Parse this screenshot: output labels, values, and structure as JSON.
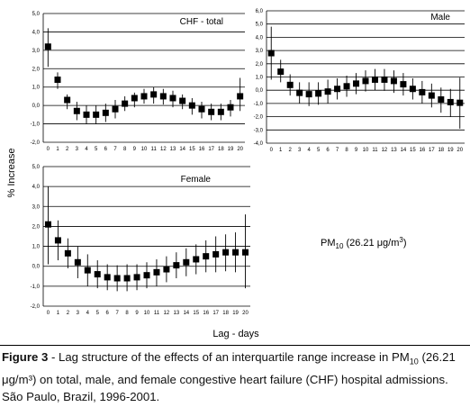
{
  "chart_data": {
    "type": "scatter",
    "ylabel": "% Increase",
    "xlabel": "Lag - days",
    "pollutant_label": {
      "main": "PM",
      "sub": "10",
      "rest": " (26.21 μg/m",
      "sup": "3",
      "close": ")"
    },
    "panels": [
      {
        "title": "CHF - total",
        "x": [
          0,
          1,
          2,
          3,
          4,
          5,
          6,
          7,
          8,
          9,
          10,
          11,
          12,
          13,
          14,
          15,
          16,
          17,
          18,
          19,
          20
        ],
        "y": [
          3.2,
          1.4,
          0.3,
          -0.3,
          -0.5,
          -0.5,
          -0.4,
          -0.2,
          0.1,
          0.4,
          0.5,
          0.6,
          0.5,
          0.4,
          0.25,
          0.0,
          -0.2,
          -0.35,
          -0.35,
          -0.1,
          0.5
        ],
        "ci_low": [
          2.1,
          0.9,
          -0.2,
          -0.8,
          -1.0,
          -1.0,
          -0.9,
          -0.7,
          -0.3,
          -0.1,
          0.1,
          0.1,
          0.05,
          -0.1,
          -0.2,
          -0.5,
          -0.7,
          -0.8,
          -0.8,
          -0.6,
          -0.3
        ],
        "ci_high": [
          4.2,
          1.8,
          0.6,
          0.2,
          0.0,
          0.0,
          0.1,
          0.3,
          0.5,
          0.7,
          0.9,
          1.0,
          0.9,
          0.8,
          0.6,
          0.4,
          0.2,
          0.1,
          0.1,
          0.3,
          1.5
        ],
        "ylim": [
          -2,
          5
        ],
        "yticks": [
          "-2,0",
          "-1,0",
          "0,0",
          "1,0",
          "2,0",
          "3,0",
          "4,0",
          "5,0"
        ],
        "yticks_values": [
          -2,
          -1,
          0,
          1,
          2,
          3,
          4,
          5
        ],
        "xticks": [
          "0",
          "1",
          "2",
          "3",
          "4",
          "5",
          "6",
          "7",
          "8",
          "9",
          "10",
          "11",
          "12",
          "13",
          "14",
          "15",
          "16",
          "17",
          "18",
          "19",
          "20"
        ]
      },
      {
        "title": "Male",
        "x": [
          0,
          1,
          2,
          3,
          4,
          5,
          6,
          7,
          8,
          9,
          10,
          11,
          12,
          13,
          14,
          15,
          16,
          17,
          18,
          19,
          20
        ],
        "y": [
          2.8,
          1.4,
          0.4,
          -0.2,
          -0.3,
          -0.25,
          -0.1,
          0.1,
          0.3,
          0.5,
          0.7,
          0.8,
          0.8,
          0.7,
          0.45,
          0.1,
          -0.15,
          -0.4,
          -0.7,
          -0.9,
          -0.95
        ],
        "ci_low": [
          0.8,
          0.6,
          -0.4,
          -1.0,
          -1.2,
          -1.1,
          -1.0,
          -0.7,
          -0.5,
          -0.3,
          -0.1,
          0.0,
          -0.05,
          -0.2,
          -0.4,
          -0.7,
          -1.0,
          -1.3,
          -1.7,
          -2.0,
          -2.9
        ],
        "ci_high": [
          4.8,
          2.3,
          1.2,
          0.6,
          0.6,
          0.6,
          0.8,
          0.9,
          1.1,
          1.3,
          1.5,
          1.6,
          1.6,
          1.5,
          1.3,
          0.9,
          0.7,
          0.5,
          0.2,
          0.1,
          0.95
        ],
        "ylim": [
          -4,
          6
        ],
        "yticks": [
          "-4,0",
          "-3,0",
          "-2,0",
          "-1,0",
          "0,0",
          "1,0",
          "2,0",
          "3,0",
          "4,0",
          "5,0",
          "6,0"
        ],
        "yticks_values": [
          -4,
          -3,
          -2,
          -1,
          0,
          1,
          2,
          3,
          4,
          5,
          6
        ],
        "xticks": [
          "0",
          "1",
          "2",
          "3",
          "4",
          "5",
          "6",
          "7",
          "8",
          "9",
          "10",
          "11",
          "12",
          "13",
          "14",
          "15",
          "16",
          "17",
          "18",
          "19",
          "20"
        ]
      },
      {
        "title": "Female",
        "x": [
          0,
          1,
          2,
          3,
          4,
          5,
          6,
          7,
          8,
          9,
          10,
          11,
          12,
          13,
          14,
          15,
          16,
          17,
          18,
          19,
          20
        ],
        "y": [
          2.1,
          1.3,
          0.65,
          0.2,
          -0.2,
          -0.4,
          -0.55,
          -0.6,
          -0.6,
          -0.55,
          -0.45,
          -0.3,
          -0.15,
          0.05,
          0.2,
          0.35,
          0.5,
          0.6,
          0.7,
          0.7,
          0.7
        ],
        "ci_low": [
          0.1,
          0.3,
          -0.1,
          -0.6,
          -1.0,
          -1.1,
          -1.2,
          -1.25,
          -1.25,
          -1.2,
          -1.1,
          -1.0,
          -0.8,
          -0.6,
          -0.5,
          -0.4,
          -0.3,
          -0.3,
          -0.25,
          -0.3,
          -1.1
        ],
        "ci_high": [
          4.0,
          2.3,
          1.4,
          1.0,
          0.6,
          0.3,
          0.1,
          0.05,
          0.1,
          0.1,
          0.2,
          0.35,
          0.5,
          0.7,
          0.9,
          1.1,
          1.3,
          1.5,
          1.6,
          1.7,
          2.6
        ],
        "ylim": [
          -2,
          5
        ],
        "yticks": [
          "-2,0",
          "-1,0",
          "0,0",
          "1,0",
          "2,0",
          "3,0",
          "4,0",
          "5,0"
        ],
        "yticks_values": [
          -2,
          -1,
          0,
          1,
          2,
          3,
          4,
          5
        ],
        "xticks": [
          "0",
          "1",
          "2",
          "3",
          "4",
          "5",
          "6",
          "7",
          "8",
          "9",
          "10",
          "11",
          "12",
          "13",
          "14",
          "15",
          "16",
          "17",
          "18",
          "19",
          "20"
        ]
      }
    ]
  },
  "caption": {
    "label": "Figure 3",
    "text_1": " - Lag structure of the effects of an interquartile range increase in PM",
    "sub": "10",
    "text_2": " (26.21 μg/m³) on total, male, and female congestive heart failure (CHF) hospital admissions. São Paulo, Brazil, 1996-2001."
  }
}
